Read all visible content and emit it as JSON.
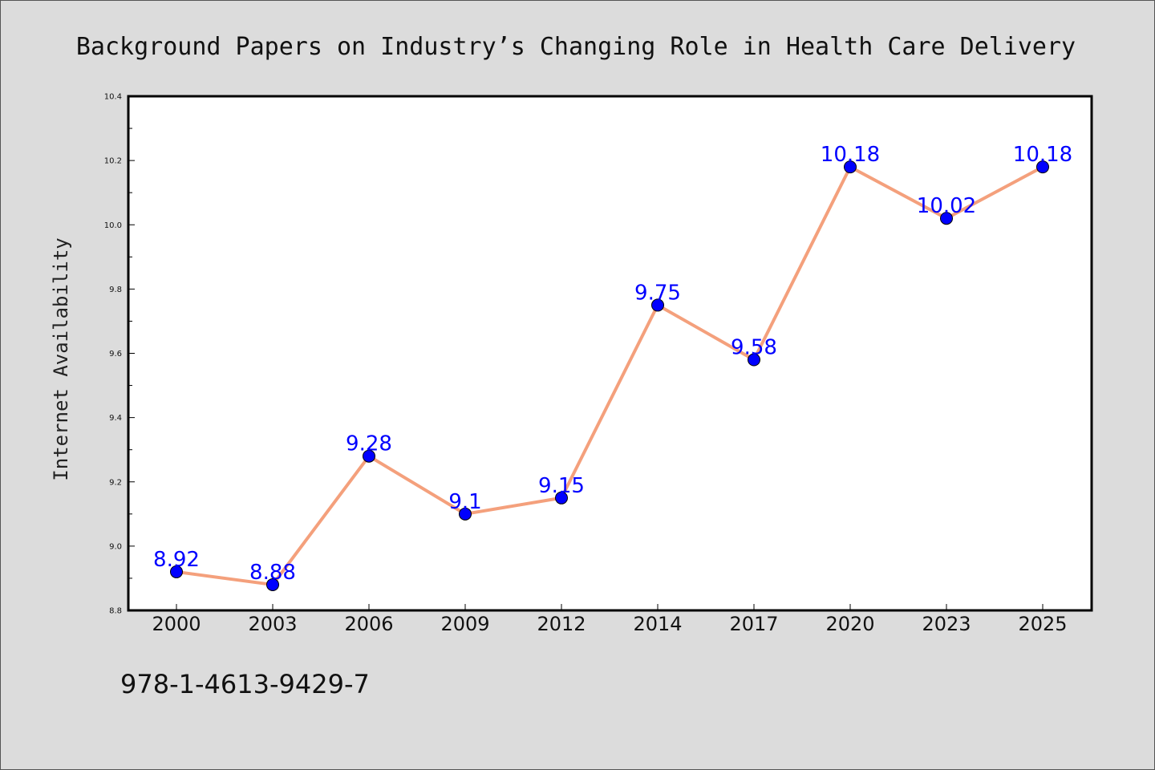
{
  "chart_data": {
    "type": "line",
    "title": "Background Papers on Industry’s Changing Role in Health Care Delivery",
    "xlabel": "",
    "ylabel": "Internet Availability",
    "categories": [
      "2000",
      "2003",
      "2006",
      "2009",
      "2012",
      "2014",
      "2017",
      "2020",
      "2023",
      "2025"
    ],
    "values": [
      8.92,
      8.88,
      9.28,
      9.1,
      9.15,
      9.75,
      9.58,
      10.18,
      10.02,
      10.18
    ],
    "data_labels": [
      "8.92",
      "8.88",
      "9.28",
      "9.1",
      "9.15",
      "9.75",
      "9.58",
      "10.18",
      "10.02",
      "10.18"
    ],
    "ylim": [
      8.8,
      10.4
    ],
    "yticks": [
      "8.8",
      "9.0",
      "9.2",
      "9.4",
      "9.6",
      "9.8",
      "10.0",
      "10.2",
      "10.4"
    ],
    "grid": false,
    "legend": "none",
    "colors": {
      "line": "#f4a07c",
      "marker": "#0000ff",
      "label": "#0000ff",
      "background": "#dcdcdc",
      "plot_background": "#ffffff"
    }
  },
  "footnote": "978-1-4613-9429-7"
}
